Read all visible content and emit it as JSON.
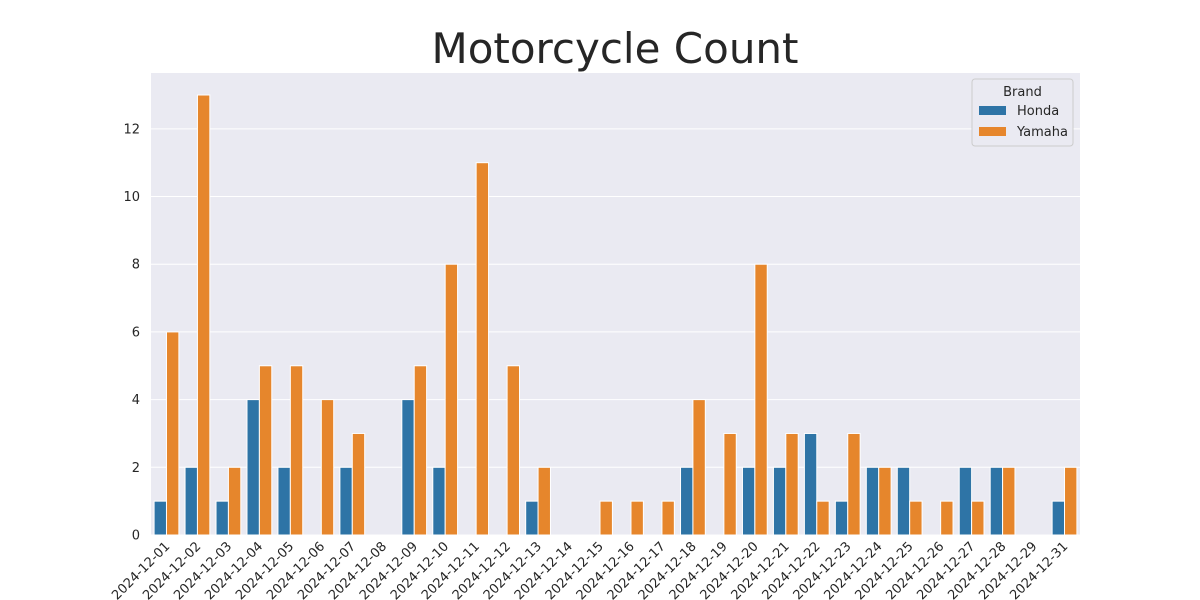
{
  "chart_data": {
    "type": "bar",
    "title": "Motorcycle Count",
    "xlabel": "",
    "ylabel": "",
    "ylim": [
      0,
      13.65
    ],
    "yticks": [
      0,
      2,
      4,
      6,
      8,
      10,
      12
    ],
    "grid": true,
    "legend": {
      "title": "Brand",
      "placement": "top-right"
    },
    "categories": [
      "2024-12-01",
      "2024-12-02",
      "2024-12-03",
      "2024-12-04",
      "2024-12-05",
      "2024-12-06",
      "2024-12-07",
      "2024-12-08",
      "2024-12-09",
      "2024-12-10",
      "2024-12-11",
      "2024-12-12",
      "2024-12-13",
      "2024-12-14",
      "2024-12-15",
      "2024-12-16",
      "2024-12-17",
      "2024-12-18",
      "2024-12-19",
      "2024-12-20",
      "2024-12-21",
      "2024-12-22",
      "2024-12-23",
      "2024-12-24",
      "2024-12-25",
      "2024-12-26",
      "2024-12-27",
      "2024-12-28",
      "2024-12-29",
      "2024-12-31"
    ],
    "series": [
      {
        "name": "Honda",
        "color": "#2e74a6",
        "values": [
          1,
          2,
          1,
          4,
          2,
          0,
          2,
          0,
          4,
          2,
          0,
          0,
          1,
          0,
          0,
          0,
          0,
          2,
          0,
          2,
          2,
          3,
          1,
          2,
          2,
          0,
          2,
          2,
          0,
          1
        ]
      },
      {
        "name": "Yamaha",
        "color": "#e6862c",
        "values": [
          6,
          13,
          2,
          5,
          5,
          4,
          3,
          0,
          5,
          8,
          11,
          5,
          2,
          0,
          1,
          1,
          1,
          4,
          3,
          8,
          3,
          1,
          3,
          2,
          1,
          1,
          1,
          2,
          0,
          2
        ]
      }
    ]
  }
}
